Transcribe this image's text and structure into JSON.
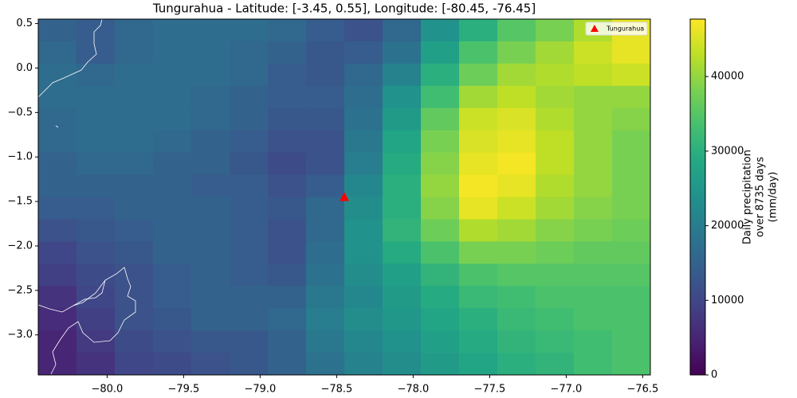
{
  "chart_data": {
    "type": "heatmap",
    "title": "Tungurahua - Latitude: [-3.45, 0.55], Longitude: [-80.45, -76.45]",
    "xlim": [
      -80.45,
      -76.45
    ],
    "ylim": [
      -3.45,
      0.55
    ],
    "xticks": [
      {
        "value": -80.0,
        "label": "−80.0"
      },
      {
        "value": -79.5,
        "label": "−79.5"
      },
      {
        "value": -79.0,
        "label": "−79.0"
      },
      {
        "value": -78.5,
        "label": "−78.5"
      },
      {
        "value": -78.0,
        "label": "−78.0"
      },
      {
        "value": -77.5,
        "label": "−77.5"
      },
      {
        "value": -77.0,
        "label": "−77.0"
      },
      {
        "value": -76.5,
        "label": "−76.5"
      }
    ],
    "yticks": [
      {
        "value": 0.5,
        "label": "0.5"
      },
      {
        "value": 0.0,
        "label": "0.0"
      },
      {
        "value": -0.5,
        "label": "−0.5"
      },
      {
        "value": -1.0,
        "label": "−1.0"
      },
      {
        "value": -1.5,
        "label": "−1.5"
      },
      {
        "value": -2.0,
        "label": "−2.0"
      },
      {
        "value": -2.5,
        "label": "−2.5"
      },
      {
        "value": -3.0,
        "label": "−3.0"
      }
    ],
    "colorscale": "viridis",
    "zlim": [
      0,
      47700
    ],
    "colorbar_ticks": [
      0,
      10000,
      20000,
      30000,
      40000
    ],
    "colorbar_label": [
      "Daily precipitation",
      "over 8735 days",
      "(mm/day)"
    ],
    "markers": [
      {
        "name": "Tungurahua",
        "x": -78.45,
        "y": -1.45,
        "color": "#ff0000"
      }
    ],
    "z": [
      [
        15000,
        14000,
        16000,
        17000,
        17000,
        17000,
        16000,
        14000,
        12000,
        16000,
        24000,
        30000,
        35000,
        38000,
        42000,
        46000
      ],
      [
        16000,
        14000,
        16000,
        17000,
        17000,
        16000,
        15000,
        13000,
        14000,
        18000,
        27000,
        34000,
        38000,
        41000,
        44000,
        46000
      ],
      [
        17000,
        16000,
        17000,
        17000,
        17000,
        16000,
        14000,
        13000,
        16000,
        21000,
        30000,
        37000,
        41000,
        42000,
        43000,
        44000
      ],
      [
        17000,
        17000,
        17000,
        17000,
        16000,
        15000,
        14000,
        14000,
        17000,
        24000,
        33000,
        41000,
        43000,
        41000,
        40000,
        40000
      ],
      [
        16000,
        17000,
        17000,
        17000,
        16000,
        15000,
        13000,
        13000,
        18000,
        26000,
        36000,
        44000,
        45000,
        42000,
        40000,
        39000
      ],
      [
        16000,
        17000,
        17000,
        16000,
        15000,
        14000,
        12000,
        12000,
        19000,
        28000,
        38000,
        45000,
        46000,
        43000,
        40000,
        38000
      ],
      [
        15000,
        16000,
        16000,
        15000,
        15000,
        13000,
        11000,
        12000,
        20000,
        29000,
        39000,
        46000,
        47000,
        43000,
        40000,
        38000
      ],
      [
        15000,
        15000,
        15000,
        15000,
        14000,
        14000,
        12000,
        14000,
        22000,
        30000,
        40000,
        47000,
        46000,
        42000,
        40000,
        38000
      ],
      [
        14000,
        14000,
        15000,
        15000,
        15000,
        14000,
        13000,
        16000,
        23000,
        30000,
        39000,
        46000,
        44000,
        41000,
        39000,
        38000
      ],
      [
        12000,
        13000,
        14000,
        15000,
        15000,
        14000,
        12000,
        16000,
        24000,
        31000,
        37000,
        42000,
        41000,
        39000,
        38000,
        37000
      ],
      [
        10000,
        12000,
        13000,
        15000,
        15000,
        14000,
        12000,
        17000,
        24000,
        29000,
        34000,
        38000,
        38000,
        37000,
        36000,
        36000
      ],
      [
        9000,
        11000,
        12000,
        14000,
        15000,
        14000,
        13000,
        18000,
        23000,
        27000,
        31000,
        34000,
        35000,
        35000,
        35000,
        35000
      ],
      [
        7000,
        10000,
        12000,
        14000,
        15000,
        15000,
        15000,
        19000,
        22000,
        26000,
        29000,
        32000,
        33000,
        34000,
        34000,
        34000
      ],
      [
        6000,
        9000,
        12000,
        13000,
        15000,
        15000,
        16000,
        20000,
        23000,
        25000,
        28000,
        30000,
        32000,
        33000,
        34000,
        34000
      ],
      [
        5000,
        8000,
        11000,
        12000,
        13000,
        13000,
        15000,
        19000,
        22000,
        24000,
        27000,
        29000,
        31000,
        32000,
        33000,
        34000
      ],
      [
        5000,
        7000,
        10000,
        11000,
        12000,
        13000,
        15000,
        18000,
        21000,
        23000,
        26000,
        28000,
        30000,
        31000,
        33000,
        34000
      ]
    ]
  }
}
